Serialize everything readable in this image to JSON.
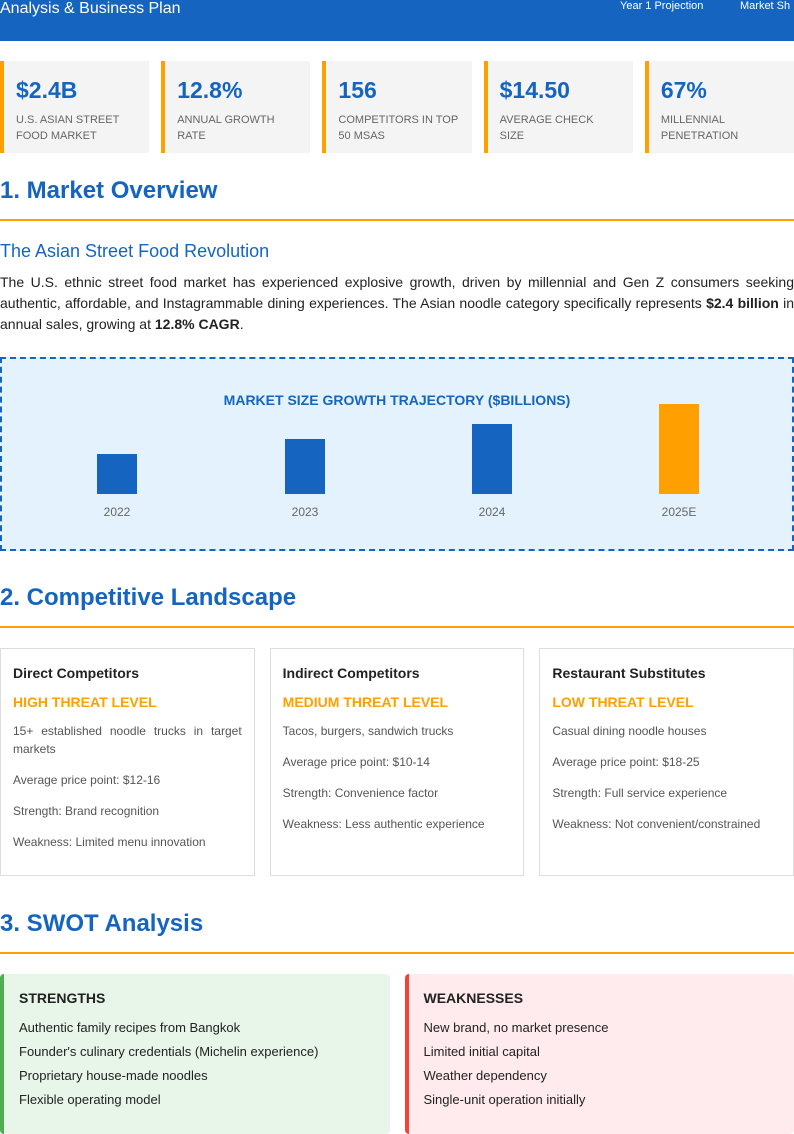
{
  "header": {
    "title": "Analysis & Business Plan",
    "nav": [
      "Year 1 Projection",
      "Market Sh"
    ]
  },
  "stats": [
    {
      "value": "$2.4B",
      "label": "U.S. Asian Street Food Market"
    },
    {
      "value": "12.8%",
      "label": "Annual Growth Rate"
    },
    {
      "value": "156",
      "label": "Competitors in Top 50 MSAs"
    },
    {
      "value": "$14.50",
      "label": "Average Check Size"
    },
    {
      "value": "67%",
      "label": "Millennial Penetration"
    }
  ],
  "s1": {
    "title": "1. Market Overview",
    "subtitle": "The Asian Street Food Revolution",
    "p1": "The U.S. ethnic street food market has experienced explosive growth, driven by millennial and Gen Z consumers seeking authentic, affordable, and Instagrammable dining experiences. The Asian noodle category specifically represents ",
    "b1": "$2.4 billion",
    "p2": " in annual sales, growing at ",
    "b2": "12.8% CAGR",
    "p3": "."
  },
  "chart_data": {
    "type": "bar",
    "title": "MARKET SIZE GROWTH TRAJECTORY ($BILLIONS)",
    "categories": [
      "2022",
      "2023",
      "2024",
      "2025E"
    ],
    "values": [
      40,
      55,
      70,
      90
    ],
    "colors": [
      "#1565c0",
      "#1565c0",
      "#1565c0",
      "#ff9f00"
    ],
    "grid": false
  },
  "s2": {
    "title": "2. Competitive Landscape",
    "cards": [
      {
        "title": "Direct Competitors",
        "threat": "HIGH THREAT LEVEL",
        "items": [
          "15+ established noodle trucks in target markets",
          "Average price point: $12-16",
          "Strength: Brand recognition",
          "Weakness: Limited menu innovation"
        ]
      },
      {
        "title": "Indirect Competitors",
        "threat": "MEDIUM THREAT LEVEL",
        "items": [
          "Tacos, burgers, sandwich trucks",
          "Average price point: $10-14",
          "Strength: Convenience factor",
          "Weakness: Less authentic experience"
        ]
      },
      {
        "title": "Restaurant Substitutes",
        "threat": "LOW THREAT LEVEL",
        "items": [
          "Casual dining noodle houses",
          "Average price point: $18-25",
          "Strength: Full service experience",
          "Weakness: Not convenient/constrained"
        ]
      }
    ]
  },
  "s3": {
    "title": "3. SWOT Analysis",
    "boxes": [
      {
        "title": "STRENGTHS",
        "items": [
          "Authentic family recipes from Bangkok",
          "Founder's culinary credentials (Michelin experience)",
          "Proprietary house-made noodles",
          "Flexible operating model"
        ]
      },
      {
        "title": "WEAKNESSES",
        "items": [
          "New brand, no market presence",
          "Limited initial capital",
          "Weather dependency",
          "Single-unit operation initially"
        ]
      }
    ]
  }
}
